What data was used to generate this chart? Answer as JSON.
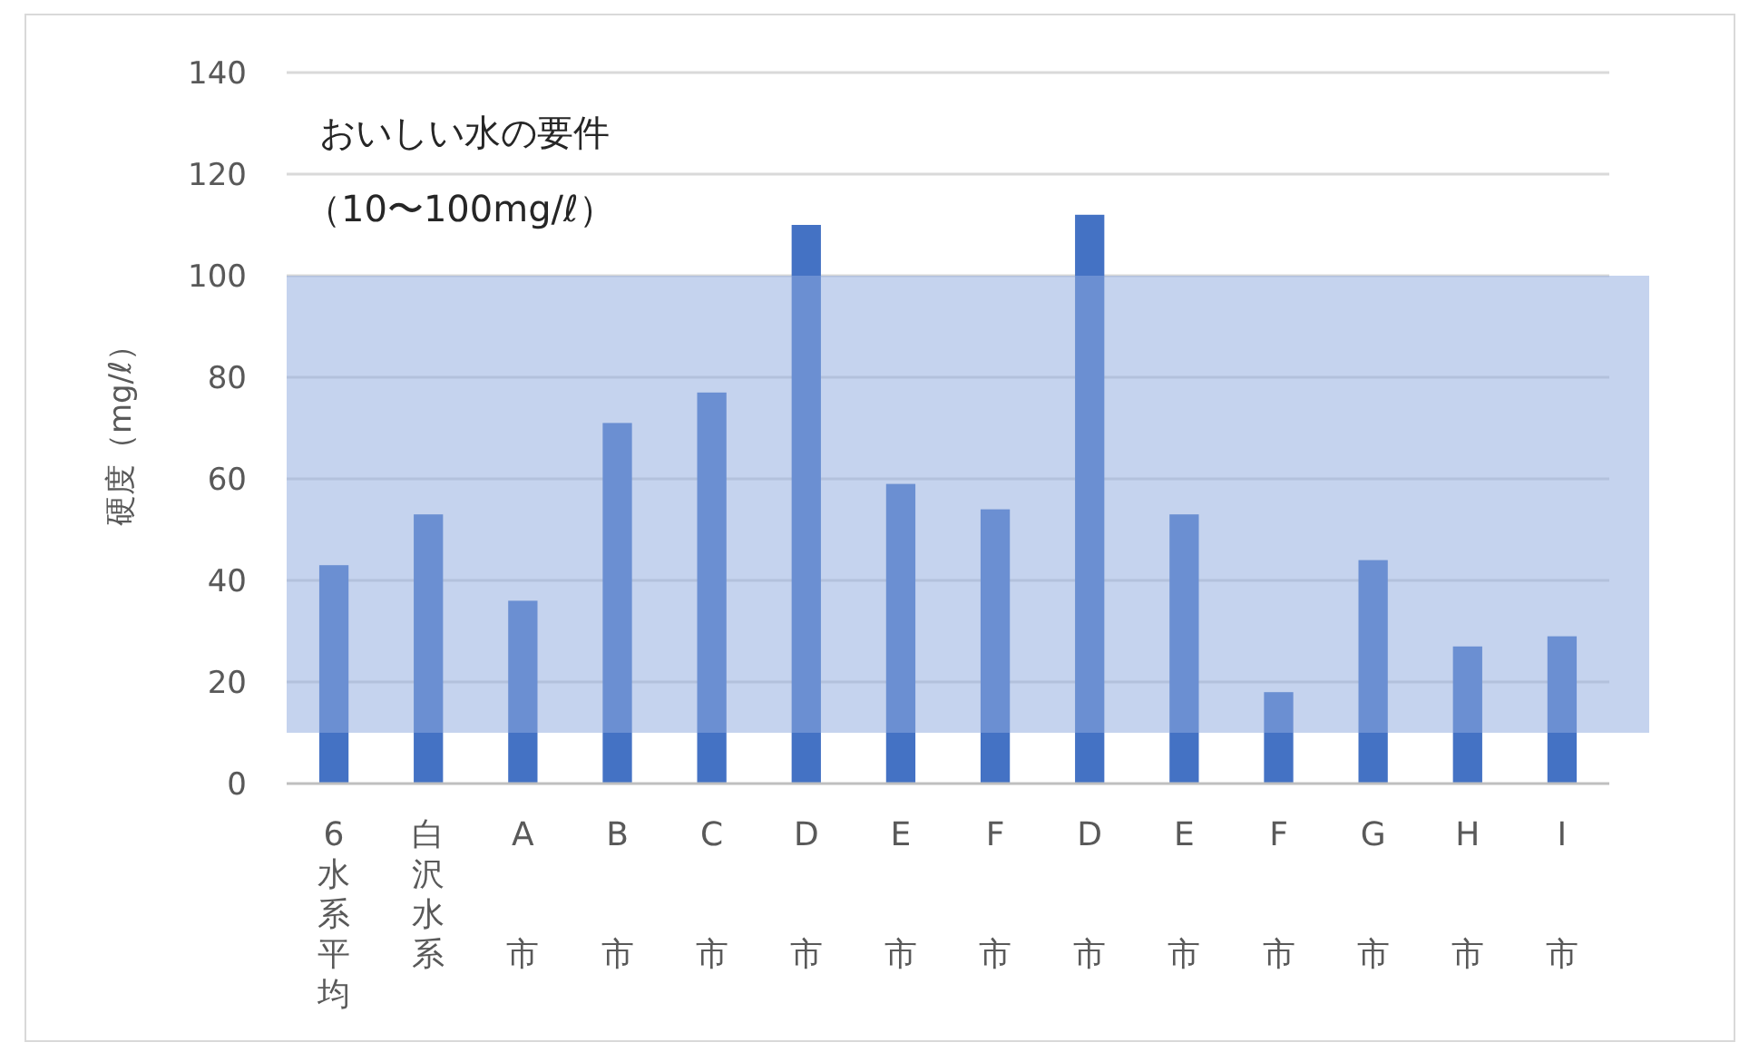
{
  "chart_data": {
    "type": "bar",
    "ylabel": "硬度（mg/ℓ）",
    "categories": [
      "6水系平均",
      "白沢水系",
      "A市",
      "B市",
      "C市",
      "D市",
      "E市",
      "F市",
      "D市",
      "E市",
      "F市",
      "G市",
      "H市",
      "I市"
    ],
    "values": [
      43,
      53,
      36,
      71,
      77,
      110,
      59,
      54,
      112,
      53,
      18,
      44,
      27,
      29
    ],
    "color": "#4472c4",
    "ylim": [
      0,
      140
    ],
    "yticks": [
      0,
      20,
      40,
      60,
      80,
      100,
      120,
      140
    ],
    "grid": "y",
    "bands": [
      {
        "axis": "y",
        "from": 10,
        "to": 100,
        "color": "#8faade"
      }
    ],
    "annotations": [
      "おいしい水の要件",
      "（10〜100mg/ℓ）"
    ]
  }
}
